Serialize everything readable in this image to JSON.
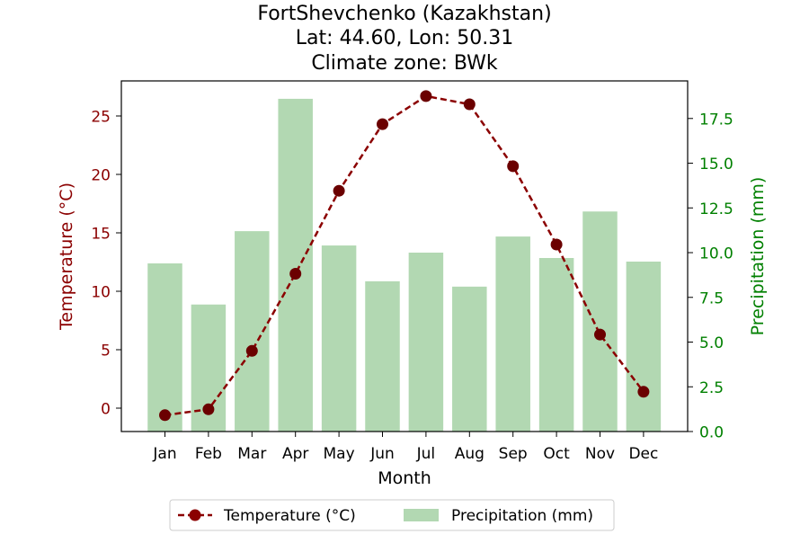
{
  "chart_data": {
    "type": "bar+line",
    "title_lines": [
      "FortShevchenko (Kazakhstan)",
      "Lat: 44.60, Lon: 50.31",
      "Climate zone: BWk"
    ],
    "xlabel": "Month",
    "categories": [
      "Jan",
      "Feb",
      "Mar",
      "Apr",
      "May",
      "Jun",
      "Jul",
      "Aug",
      "Sep",
      "Oct",
      "Nov",
      "Dec"
    ],
    "y_left": {
      "label": "Temperature (°C)",
      "range": [
        -2,
        28
      ],
      "ticks": [
        0,
        5,
        10,
        15,
        20,
        25
      ],
      "tick_labels": [
        "0",
        "5",
        "10",
        "15",
        "20",
        "25"
      ],
      "color": "#8b0000"
    },
    "y_right": {
      "label": "Precipitation (mm)",
      "range": [
        0,
        19.6
      ],
      "ticks": [
        0,
        2.5,
        5,
        7.5,
        10,
        12.5,
        15,
        17.5
      ],
      "tick_labels": [
        "0.0",
        "2.5",
        "5.0",
        "7.5",
        "10.0",
        "12.5",
        "15.0",
        "17.5"
      ],
      "color": "#008000"
    },
    "series": [
      {
        "name": "Temperature (°C)",
        "kind": "line",
        "axis": "left",
        "color": "#8b0000",
        "style": "dashed",
        "marker": "circle",
        "values": [
          -0.6,
          -0.1,
          4.9,
          11.5,
          18.6,
          24.3,
          26.7,
          26.0,
          20.7,
          14.0,
          6.3,
          1.4
        ]
      },
      {
        "name": "Precipitation (mm)",
        "kind": "bar",
        "axis": "right",
        "color": "#b2d8b2",
        "values": [
          9.4,
          7.1,
          11.2,
          18.6,
          10.4,
          8.4,
          10.0,
          8.1,
          10.9,
          9.7,
          12.3,
          9.5
        ]
      }
    ],
    "legend": {
      "position": "bottom-center",
      "entries": [
        "Temperature (°C)",
        "Precipitation (mm)"
      ]
    },
    "grid": false
  }
}
